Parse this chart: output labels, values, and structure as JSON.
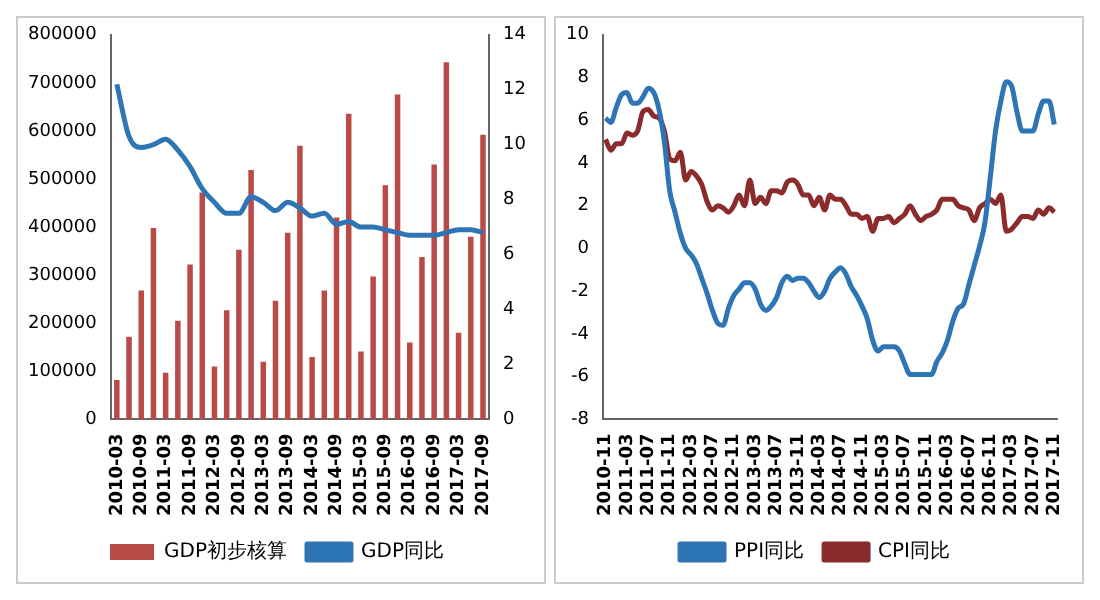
{
  "chart_data": [
    {
      "type": "bar",
      "categories": [
        "2010-03",
        null,
        "2010-09",
        null,
        "2011-03",
        null,
        "2011-09",
        null,
        "2012-03",
        null,
        "2012-09",
        null,
        "2013-03",
        null,
        "2013-09",
        null,
        "2014-03",
        null,
        "2014-09",
        null,
        "2015-03",
        null,
        "2015-09",
        null,
        "2016-03",
        null,
        "2016-09",
        null,
        "2017-03",
        null,
        "2017-09"
      ],
      "series": [
        {
          "name": "GDP初步核算",
          "color": "#b94a48",
          "values": [
            82000,
            172000,
            268000,
            398000,
            97000,
            205000,
            322000,
            472000,
            110000,
            227000,
            353000,
            519000,
            120000,
            247000,
            388000,
            569000,
            130000,
            268000,
            420000,
            636000,
            141000,
            297000,
            487000,
            676000,
            160000,
            338000,
            530000,
            743000,
            180000,
            380000,
            592000
          ]
        },
        {
          "name": "GDP同比",
          "type": "line",
          "axis": "y2",
          "color": "#2e75b6",
          "values": [
            12.2,
            10.3,
            9.9,
            10.0,
            10.2,
            9.8,
            9.2,
            8.4,
            7.9,
            7.5,
            7.5,
            8.1,
            7.9,
            7.6,
            7.9,
            7.7,
            7.4,
            7.5,
            7.1,
            7.2,
            7.0,
            7.0,
            6.9,
            6.8,
            6.7,
            6.7,
            6.7,
            6.8,
            6.9,
            6.9,
            6.8
          ]
        }
      ],
      "ylim": [
        0,
        800000
      ],
      "yticks": [
        0,
        100000,
        200000,
        300000,
        400000,
        500000,
        600000,
        700000,
        800000
      ],
      "y2lim": [
        0,
        14
      ],
      "y2ticks": [
        0,
        2,
        4,
        6,
        8,
        10,
        12,
        14
      ],
      "legend": "bottom",
      "marker": "none",
      "line_style": "solid"
    },
    {
      "type": "line",
      "categories": [
        "2010-11",
        null,
        null,
        null,
        "2011-03",
        null,
        null,
        null,
        "2011-07",
        null,
        null,
        null,
        "2011-11",
        null,
        null,
        null,
        "2012-03",
        null,
        null,
        null,
        "2012-07",
        null,
        null,
        null,
        "2012-11",
        null,
        null,
        null,
        "2013-03",
        null,
        null,
        null,
        "2013-07",
        null,
        null,
        null,
        "2013-11",
        null,
        null,
        null,
        "2014-03",
        null,
        null,
        null,
        "2014-07",
        null,
        null,
        null,
        "2014-11",
        null,
        null,
        null,
        "2015-03",
        null,
        null,
        null,
        "2015-07",
        null,
        null,
        null,
        "2015-11",
        null,
        null,
        null,
        "2016-03",
        null,
        null,
        null,
        "2016-07",
        null,
        null,
        null,
        "2016-11",
        null,
        null,
        null,
        "2017-03",
        null,
        null,
        null,
        "2017-07",
        null,
        null,
        null,
        "2017-11"
      ],
      "series": [
        {
          "name": "PPI同比",
          "color": "#2e75b6",
          "values": [
            6.1,
            5.9,
            6.6,
            7.2,
            7.3,
            6.8,
            6.8,
            7.1,
            7.5,
            7.3,
            6.5,
            5.0,
            2.7,
            1.7,
            0.7,
            0.0,
            -0.3,
            -0.7,
            -1.4,
            -2.1,
            -2.9,
            -3.5,
            -3.6,
            -2.8,
            -2.2,
            -1.9,
            -1.6,
            -1.6,
            -1.9,
            -2.6,
            -2.9,
            -2.7,
            -2.3,
            -1.6,
            -1.3,
            -1.5,
            -1.4,
            -1.4,
            -1.6,
            -2.0,
            -2.3,
            -2.0,
            -1.4,
            -1.1,
            -0.9,
            -1.2,
            -1.8,
            -2.2,
            -2.7,
            -3.3,
            -4.3,
            -4.8,
            -4.6,
            -4.6,
            -4.6,
            -4.8,
            -5.4,
            -5.9,
            -5.9,
            -5.9,
            -5.9,
            -5.9,
            -5.3,
            -4.9,
            -4.3,
            -3.4,
            -2.8,
            -2.6,
            -1.7,
            -0.8,
            0.1,
            1.2,
            3.3,
            5.5,
            6.9,
            7.8,
            7.6,
            6.4,
            5.5,
            5.5,
            5.5,
            6.3,
            6.9,
            6.9,
            5.8
          ]
        },
        {
          "name": "CPI同比",
          "color": "#8b2b2b",
          "values": [
            5.1,
            4.6,
            4.9,
            4.9,
            5.4,
            5.3,
            5.5,
            6.4,
            6.5,
            6.2,
            6.1,
            5.5,
            4.2,
            4.1,
            4.5,
            3.2,
            3.6,
            3.4,
            3.0,
            2.2,
            1.8,
            2.0,
            1.9,
            1.7,
            2.0,
            2.5,
            2.0,
            3.2,
            2.1,
            2.4,
            2.1,
            2.7,
            2.7,
            2.6,
            3.1,
            3.2,
            3.0,
            2.5,
            2.5,
            2.0,
            2.4,
            1.8,
            2.5,
            2.3,
            2.3,
            2.0,
            1.6,
            1.6,
            1.4,
            1.5,
            0.8,
            1.4,
            1.4,
            1.5,
            1.2,
            1.4,
            1.6,
            2.0,
            1.6,
            1.3,
            1.5,
            1.6,
            1.8,
            2.3,
            2.3,
            2.3,
            2.0,
            1.9,
            1.8,
            1.3,
            1.9,
            2.1,
            2.3,
            2.1,
            2.5,
            0.8,
            0.9,
            1.2,
            1.5,
            1.5,
            1.4,
            1.8,
            1.6,
            1.9,
            1.7
          ]
        }
      ],
      "ylim": [
        -8,
        10
      ],
      "yticks": [
        -8,
        -6,
        -4,
        -2,
        0,
        2,
        4,
        6,
        8,
        10
      ],
      "legend": "bottom",
      "marker": "none",
      "line_style": "solid"
    }
  ]
}
